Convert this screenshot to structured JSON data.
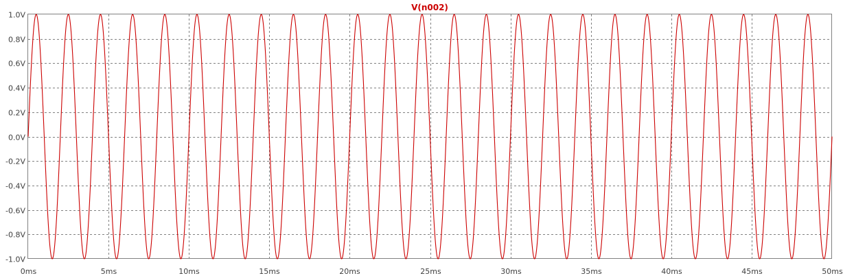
{
  "chart_data": {
    "type": "line",
    "title": "V(n002)",
    "xlabel": "",
    "ylabel": "",
    "xlim": [
      0,
      50
    ],
    "ylim": [
      -1.0,
      1.0
    ],
    "grid": true,
    "x_tick_values": [
      0,
      5,
      10,
      15,
      20,
      25,
      30,
      35,
      40,
      45,
      50
    ],
    "x_tick_labels": [
      "0ms",
      "5ms",
      "10ms",
      "15ms",
      "20ms",
      "25ms",
      "30ms",
      "35ms",
      "40ms",
      "45ms",
      "50ms"
    ],
    "y_tick_values": [
      1.0,
      0.8,
      0.6,
      0.4,
      0.2,
      0.0,
      -0.2,
      -0.4,
      -0.6,
      -0.8,
      -1.0
    ],
    "y_tick_labels": [
      "1.0V",
      "0.8V",
      "0.6V",
      "0.4V",
      "0.2V",
      "0.0V",
      "-0.2V",
      "-0.4V",
      "-0.6V",
      "-0.8V",
      "-1.0V"
    ],
    "series": [
      {
        "name": "V(n002)",
        "color": "#cc0000",
        "waveform": "sine",
        "amplitude": 1.0,
        "offset": 0.0,
        "period_ms": 2.0,
        "x_start_ms": 0,
        "x_end_ms": 50
      }
    ]
  }
}
